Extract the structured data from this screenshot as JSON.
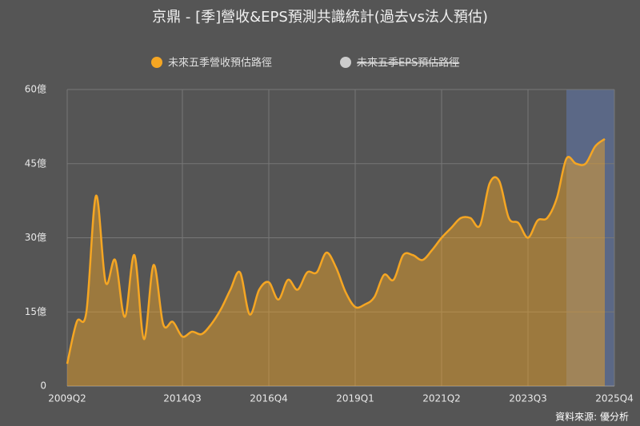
{
  "chart_data": {
    "type": "area",
    "title": "京鼎 - [季]營收&EPS預測共識統計(過去vs法人預估)",
    "source": "資料來源: 優分析",
    "categories": [
      "2009Q2",
      null,
      null,
      null,
      null,
      null,
      null,
      null,
      null,
      null,
      null,
      null,
      "2014Q3",
      null,
      null,
      null,
      null,
      null,
      null,
      null,
      null,
      "2016Q4",
      null,
      null,
      null,
      null,
      null,
      null,
      null,
      null,
      "2019Q1",
      null,
      null,
      null,
      null,
      null,
      null,
      null,
      null,
      "2021Q2",
      null,
      null,
      null,
      null,
      null,
      null,
      null,
      null,
      "2023Q3",
      null,
      null,
      null,
      null,
      null,
      null,
      null,
      null,
      "2025Q4"
    ],
    "series": [
      {
        "name": "未來五季營收預估路徑",
        "color": "#f5a623",
        "visible": true,
        "values": [
          4.5,
          13,
          15,
          38.5,
          21,
          25.5,
          14,
          26.5,
          9.5,
          24.5,
          12.5,
          13,
          10,
          11,
          10.5,
          12.5,
          15.5,
          19.5,
          23,
          14.5,
          19.5,
          21,
          17.5,
          21.5,
          19.5,
          23,
          23,
          27,
          24,
          19,
          16,
          16.5,
          18,
          22.5,
          21.5,
          26.5,
          26.5,
          25.5,
          27.5,
          30,
          32,
          34,
          34,
          32.5,
          41,
          41.5,
          34,
          33,
          30,
          33.5,
          34,
          38,
          46,
          45,
          45,
          48.5,
          50,
          null
        ]
      },
      {
        "name": "未來五季EPS預估路徑",
        "color": "#cccccc",
        "visible": false,
        "values": [
          null,
          null,
          null,
          null,
          null,
          null,
          null,
          null,
          null,
          null,
          null,
          null,
          null,
          null,
          null,
          null,
          null,
          null,
          null,
          null,
          null,
          null,
          null,
          null,
          null,
          null,
          null,
          null,
          null,
          null,
          null,
          null,
          null,
          null,
          null,
          null,
          null,
          null,
          null,
          null,
          null,
          null,
          null,
          null,
          null,
          null,
          null,
          null,
          null,
          null,
          null,
          null,
          null,
          null,
          null,
          null,
          null,
          null
        ]
      }
    ],
    "shaded_range": [
      52,
      57
    ],
    "ylim": [
      0,
      60
    ],
    "yticks": [
      0,
      {
        "value": 15,
        "label": "15億"
      },
      {
        "value": 30,
        "label": "30億"
      },
      {
        "value": 45,
        "label": "45億"
      },
      {
        "value": 60,
        "label": "60億"
      }
    ],
    "grid": true
  }
}
